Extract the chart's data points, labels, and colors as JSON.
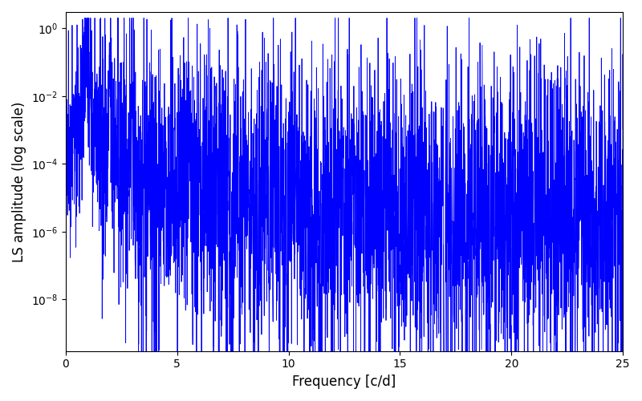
{
  "xlabel": "Frequency [c/d]",
  "ylabel": "LS amplitude (log scale)",
  "xlim": [
    0,
    25
  ],
  "ylim": [
    3e-10,
    3.0
  ],
  "yticks_vals": [
    1e-08,
    1e-06,
    0.0001,
    0.01,
    1.0
  ],
  "yticks_labels": [
    "$10^{-8}$",
    "$10^{-6}$",
    "$10^{-4}$",
    "$10^{-2}$",
    "$10^{0}$"
  ],
  "xticks": [
    0,
    5,
    10,
    15,
    20,
    25
  ],
  "line_color": "#0000ff",
  "background_color": "#ffffff",
  "figsize": [
    8.0,
    5.0
  ],
  "dpi": 100,
  "seed": 42,
  "freq_max": 25.0,
  "n_freqs": 4000
}
